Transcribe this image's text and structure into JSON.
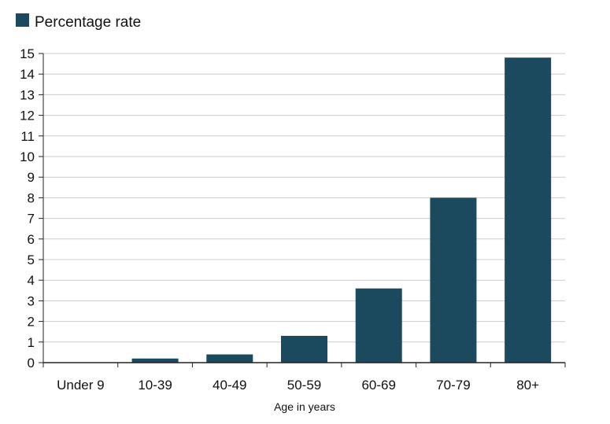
{
  "chart_data": {
    "type": "bar",
    "title": "",
    "xlabel": "Age in years",
    "ylabel": "",
    "categories": [
      "Under 9",
      "10-39",
      "40-49",
      "50-59",
      "60-69",
      "70-79",
      "80+"
    ],
    "series": [
      {
        "name": "Percentage rate",
        "values": [
          0,
          0.2,
          0.4,
          1.3,
          3.6,
          8.0,
          14.8
        ]
      }
    ],
    "ylim": [
      0,
      15
    ],
    "yticks": [
      "0",
      "1",
      "2",
      "3",
      "4",
      "5",
      "6",
      "7",
      "8",
      "9",
      "10",
      "11",
      "12",
      "13",
      "14",
      "15"
    ],
    "grid": true,
    "legend_position": "top-left",
    "colors": {
      "bar": "#1b4a5e",
      "grid": "#cccccc",
      "axis": "#222222"
    }
  }
}
